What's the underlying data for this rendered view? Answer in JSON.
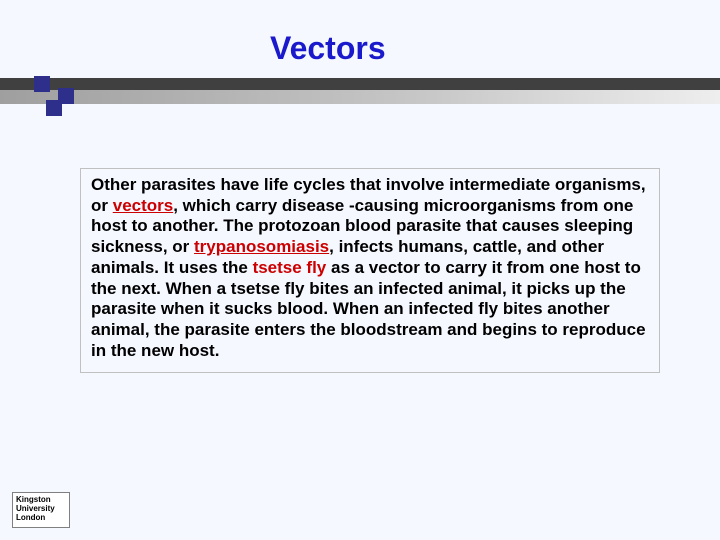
{
  "title": "Vectors",
  "colors": {
    "title": "#1a1acc",
    "bar_dark": "#404040",
    "bar_light_from": "#9f9f9f",
    "bar_light_to": "#eeeeee",
    "square": "#2e2e8b",
    "keyword": "#cc0000",
    "background": "#f6f8ff",
    "border": "#c0c0c0"
  },
  "body": {
    "seg1": "Other parasites have life cycles that involve intermediate organisms, or ",
    "kw1": "vectors",
    "seg2": ", which carry disease -causing microorganisms from one host to another. The protozoan blood parasite that causes sleeping sickness, or ",
    "kw2": "trypanosomiasis",
    "seg3": ", infects humans, cattle, and other animals. It uses the ",
    "kw3": "tsetse fly",
    "seg4": " as a vector to carry it from one host to the next. When a tsetse fly bites an infected animal, it picks up the parasite when it sucks blood. When an infected fly bites another animal, the parasite enters the bloodstream and begins to reproduce in the new host."
  },
  "logo": {
    "line1": "Kingston",
    "line2": "University",
    "line3": "London"
  }
}
